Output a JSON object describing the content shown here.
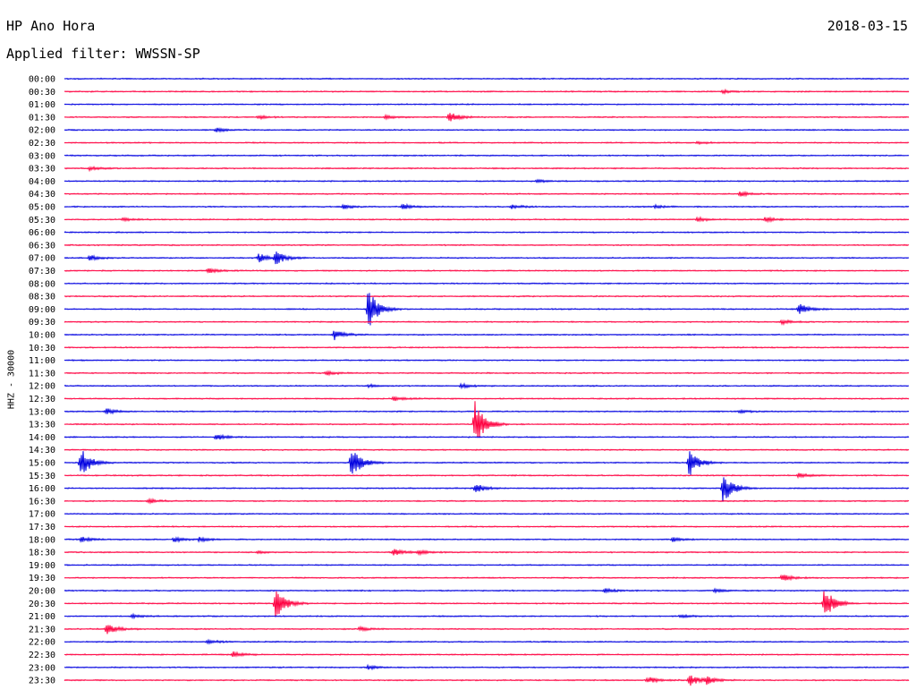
{
  "header": {
    "station": "HP Ano Hora",
    "date": "2018-03-15",
    "filter": "Applied filter: WWSSN-SP",
    "channel": "HHZ - 30000"
  },
  "colors": {
    "even_rows": "#0000e0",
    "odd_rows": "#ff0040"
  },
  "chart_data": {
    "type": "line",
    "title": "HP Ano Hora",
    "subtitle": "Applied filter: WWSSN-SP",
    "ylabel": "HHZ - 30000",
    "xlabel": "",
    "grid": false,
    "legend": "none",
    "rows": [
      {
        "label": "00:00",
        "events": []
      },
      {
        "label": "00:30",
        "events": [
          [
            0.78,
            0.3
          ]
        ]
      },
      {
        "label": "01:00",
        "events": []
      },
      {
        "label": "01:30",
        "events": [
          [
            0.23,
            0.3
          ],
          [
            0.38,
            0.4
          ],
          [
            0.456,
            1.0
          ]
        ]
      },
      {
        "label": "02:00",
        "events": [
          [
            0.18,
            0.4
          ]
        ]
      },
      {
        "label": "02:30",
        "events": [
          [
            0.75,
            0.2
          ]
        ]
      },
      {
        "label": "03:00",
        "events": []
      },
      {
        "label": "03:30",
        "events": [
          [
            0.03,
            0.4
          ]
        ]
      },
      {
        "label": "04:00",
        "events": [
          [
            0.56,
            0.3
          ]
        ]
      },
      {
        "label": "04:30",
        "events": [
          [
            0.8,
            0.5
          ]
        ]
      },
      {
        "label": "05:00",
        "events": [
          [
            0.33,
            0.4
          ],
          [
            0.4,
            0.5
          ],
          [
            0.53,
            0.4
          ],
          [
            0.7,
            0.3
          ]
        ]
      },
      {
        "label": "05:30",
        "events": [
          [
            0.07,
            0.3
          ],
          [
            0.75,
            0.4
          ],
          [
            0.83,
            0.5
          ]
        ]
      },
      {
        "label": "06:00",
        "events": []
      },
      {
        "label": "06:30",
        "events": []
      },
      {
        "label": "07:00",
        "events": [
          [
            0.03,
            0.5
          ],
          [
            0.23,
            0.8
          ],
          [
            0.25,
            1.3
          ]
        ]
      },
      {
        "label": "07:30",
        "events": [
          [
            0.17,
            0.5
          ]
        ]
      },
      {
        "label": "08:00",
        "events": []
      },
      {
        "label": "08:30",
        "events": []
      },
      {
        "label": "09:00",
        "events": [
          [
            0.36,
            4.0
          ],
          [
            0.87,
            1.0
          ]
        ]
      },
      {
        "label": "09:30",
        "events": [
          [
            0.85,
            0.4
          ]
        ]
      },
      {
        "label": "10:00",
        "events": [
          [
            0.32,
            1.0
          ]
        ]
      },
      {
        "label": "10:30",
        "events": []
      },
      {
        "label": "11:00",
        "events": []
      },
      {
        "label": "11:30",
        "events": [
          [
            0.31,
            0.4
          ]
        ]
      },
      {
        "label": "12:00",
        "events": [
          [
            0.36,
            0.3
          ],
          [
            0.47,
            0.4
          ]
        ]
      },
      {
        "label": "12:30",
        "events": [
          [
            0.39,
            0.5
          ]
        ]
      },
      {
        "label": "13:00",
        "events": [
          [
            0.05,
            0.5
          ],
          [
            0.8,
            0.3
          ]
        ]
      },
      {
        "label": "13:30",
        "events": [
          [
            0.486,
            4.5
          ]
        ]
      },
      {
        "label": "14:00",
        "events": [
          [
            0.18,
            0.6
          ]
        ]
      },
      {
        "label": "14:30",
        "events": []
      },
      {
        "label": "15:00",
        "events": [
          [
            0.019,
            3.0
          ],
          [
            0.34,
            3.0
          ],
          [
            0.74,
            2.5
          ]
        ]
      },
      {
        "label": "15:30",
        "events": [
          [
            0.87,
            0.5
          ]
        ]
      },
      {
        "label": "16:00",
        "events": [
          [
            0.487,
            1.0
          ],
          [
            0.78,
            3.0
          ]
        ]
      },
      {
        "label": "16:30",
        "events": [
          [
            0.1,
            0.4
          ]
        ]
      },
      {
        "label": "17:00",
        "events": []
      },
      {
        "label": "17:30",
        "events": []
      },
      {
        "label": "18:00",
        "events": [
          [
            0.02,
            0.5
          ],
          [
            0.13,
            0.5
          ],
          [
            0.16,
            0.4
          ],
          [
            0.72,
            0.4
          ]
        ]
      },
      {
        "label": "18:30",
        "events": [
          [
            0.23,
            0.3
          ],
          [
            0.39,
            0.7
          ],
          [
            0.42,
            0.4
          ]
        ]
      },
      {
        "label": "19:00",
        "events": []
      },
      {
        "label": "19:30",
        "events": [
          [
            0.85,
            0.7
          ]
        ]
      },
      {
        "label": "20:00",
        "events": [
          [
            0.64,
            0.4
          ],
          [
            0.77,
            0.3
          ]
        ]
      },
      {
        "label": "20:30",
        "events": [
          [
            0.25,
            3.0
          ],
          [
            0.9,
            3.0
          ]
        ]
      },
      {
        "label": "21:00",
        "events": [
          [
            0.08,
            0.3
          ],
          [
            0.73,
            0.3
          ]
        ]
      },
      {
        "label": "21:30",
        "events": [
          [
            0.05,
            1.2
          ],
          [
            0.35,
            0.4
          ]
        ]
      },
      {
        "label": "22:00",
        "events": [
          [
            0.17,
            0.4
          ]
        ]
      },
      {
        "label": "22:30",
        "events": [
          [
            0.2,
            0.5
          ]
        ]
      },
      {
        "label": "23:00",
        "events": [
          [
            0.36,
            0.4
          ]
        ]
      },
      {
        "label": "23:30",
        "events": [
          [
            0.69,
            0.7
          ],
          [
            0.74,
            1.2
          ],
          [
            0.76,
            0.7
          ]
        ]
      }
    ]
  }
}
